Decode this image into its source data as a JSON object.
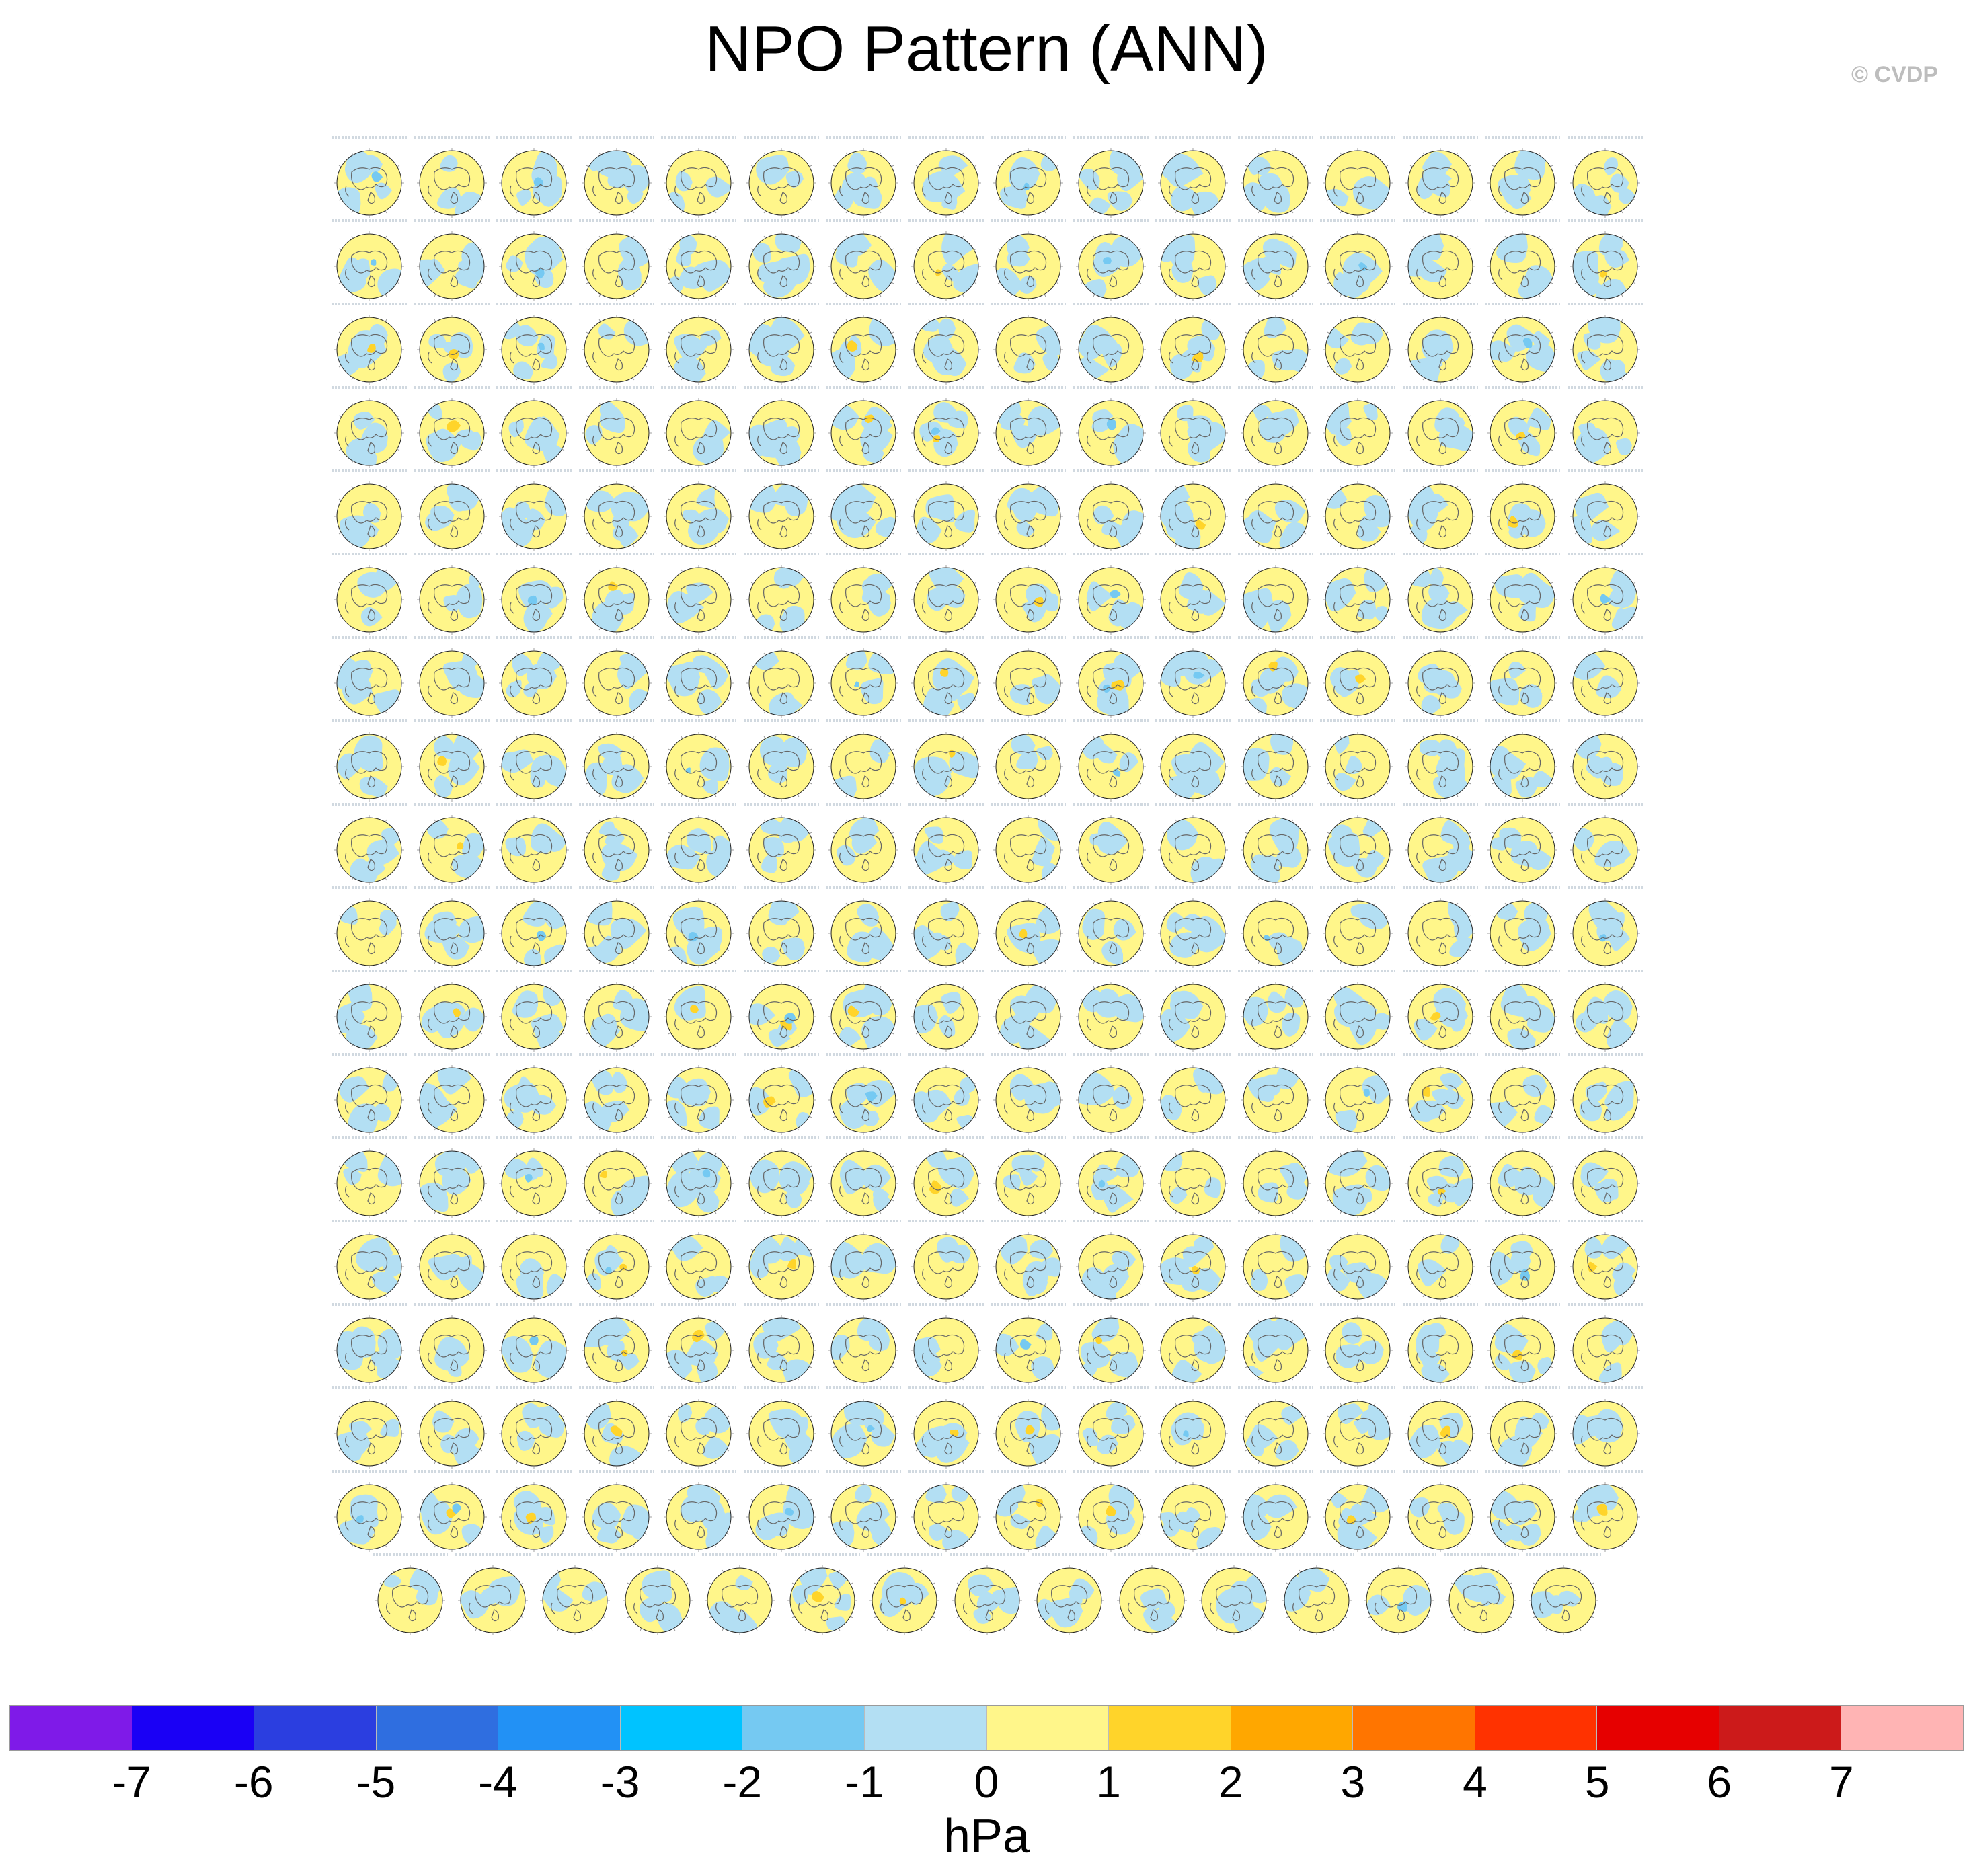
{
  "title": "NPO Pattern (ANN)",
  "copyright": "© CVDP",
  "colorbar": {
    "units": "hPa",
    "tick_labels": [
      "-7",
      "-6",
      "-5",
      "-4",
      "-3",
      "-2",
      "-1",
      "0",
      "1",
      "2",
      "3",
      "4",
      "5",
      "6",
      "7"
    ],
    "colors": [
      "#7f1ae8",
      "#1a00f5",
      "#2b3ee0",
      "#2f6ee0",
      "#2291f5",
      "#00c3ff",
      "#75c9f2",
      "#b3dff3",
      "#fff68a",
      "#ffd42a",
      "#ffa700",
      "#ff7500",
      "#ff3200",
      "#e60000",
      "#cc1a1a",
      "#ffb4b4"
    ]
  },
  "map_panels": {
    "projection": "north-polar-stereographic",
    "full_rows": 17,
    "columns_per_full_row": 16,
    "last_row_count": 15,
    "total": 287,
    "land_color": "#666666",
    "positive_fill": "#fff68a",
    "negative_fill": "#b3dff3"
  }
}
